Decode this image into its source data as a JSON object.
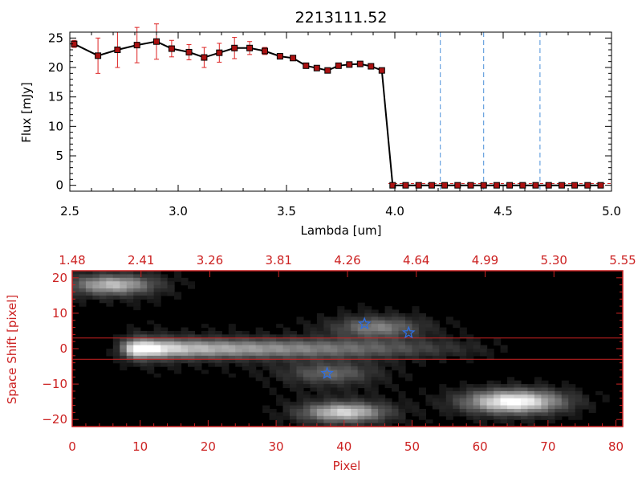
{
  "colors": {
    "red": "#cc2222",
    "black": "#000000",
    "blue_dashed": "#4a90d9",
    "star": "#2f6fe0",
    "errbar": "#dd2222",
    "marker": "#aa1111"
  },
  "chart_data": [
    {
      "type": "line",
      "title": "2213111.52",
      "xlabel": "Lambda [um]",
      "ylabel": "Flux [mJy]",
      "xlim": [
        2.5,
        5.0
      ],
      "ylim": [
        -1,
        26
      ],
      "xticks": [
        2.5,
        3.0,
        3.5,
        4.0,
        4.5,
        5.0
      ],
      "xtick_labels": [
        "2.5",
        "3.0",
        "3.5",
        "4.0",
        "4.5",
        "5.0"
      ],
      "yticks": [
        0,
        5,
        10,
        15,
        20,
        25
      ],
      "ytick_labels": [
        "0",
        "5",
        "10",
        "15",
        "20",
        "25"
      ],
      "series": [
        {
          "name": "flux",
          "x": [
            2.52,
            2.63,
            2.72,
            2.81,
            2.9,
            2.97,
            3.05,
            3.12,
            3.19,
            3.26,
            3.33,
            3.4,
            3.47,
            3.53,
            3.59,
            3.64,
            3.69,
            3.74,
            3.79,
            3.84,
            3.89,
            3.94,
            3.99,
            4.05,
            4.11,
            4.17,
            4.23,
            4.29,
            4.35,
            4.41,
            4.47,
            4.53,
            4.59,
            4.65,
            4.71,
            4.77,
            4.83,
            4.89,
            4.95
          ],
          "y": [
            24.0,
            22.0,
            23.0,
            23.8,
            24.4,
            23.2,
            22.6,
            21.7,
            22.5,
            23.3,
            23.3,
            22.8,
            21.9,
            21.6,
            20.3,
            19.9,
            19.5,
            20.3,
            20.5,
            20.6,
            20.2,
            19.5,
            0,
            0,
            0,
            0,
            0,
            0,
            0,
            0,
            0,
            0,
            0,
            0,
            0,
            0,
            0,
            0,
            0
          ],
          "yerr": [
            0.6,
            3.0,
            3.0,
            3.0,
            3.0,
            1.4,
            1.3,
            1.7,
            1.6,
            1.8,
            1.1,
            0.6,
            0.4,
            0.3,
            0.3,
            0.3,
            0.3,
            0.3,
            0.3,
            0.3,
            0.3,
            0.3,
            0,
            0,
            0,
            0,
            0,
            0,
            0,
            0,
            0,
            0,
            0,
            0,
            0,
            0,
            0,
            0,
            0
          ]
        }
      ],
      "vlines": [
        4.21,
        4.41,
        4.67
      ],
      "hline": 0.3
    },
    {
      "type": "heatmap",
      "xlabel": "Pixel",
      "ylabel": "Space Shift [pixel]",
      "xlim": [
        0,
        81
      ],
      "ylim": [
        -22,
        22
      ],
      "xticks": [
        0,
        10,
        20,
        30,
        40,
        50,
        60,
        70,
        80
      ],
      "xtick_labels": [
        "0",
        "10",
        "20",
        "30",
        "40",
        "50",
        "60",
        "70",
        "80"
      ],
      "yticks": [
        -20,
        -10,
        0,
        10,
        20
      ],
      "ytick_labels": [
        "−20",
        "−10",
        "0",
        "10",
        "20"
      ],
      "top_axis_labels": [
        "1.48",
        "2.41",
        "3.26",
        "3.81",
        "4.26",
        "4.64",
        "4.99",
        "5.30",
        "5.55"
      ],
      "hlines": [
        3,
        -3
      ],
      "sources": [
        {
          "name": "main trace",
          "x_start": 6,
          "x_end": 66,
          "y": 0,
          "peak_x": 10,
          "amplitude": 1.0,
          "width": 2.5
        },
        {
          "name": "top-left blob",
          "x": 6,
          "y": 18,
          "amplitude": 0.6,
          "width": 2.5
        },
        {
          "name": "upper-middle blob",
          "x": 45,
          "y": 6,
          "amplitude": 0.35,
          "width": 2.5
        },
        {
          "name": "lower-middle blob",
          "x": 38,
          "y": -7,
          "amplitude": 0.25,
          "width": 2.5
        },
        {
          "name": "bottom-left blob",
          "x": 40,
          "y": -18,
          "amplitude": 0.7,
          "width": 2.5
        },
        {
          "name": "bottom-right blob",
          "x": 65,
          "y": -15,
          "amplitude": 0.9,
          "width": 3
        }
      ],
      "stars": [
        {
          "x": 43,
          "y": 7
        },
        {
          "x": 49.5,
          "y": 4.5
        },
        {
          "x": 37.5,
          "y": -7
        }
      ]
    }
  ]
}
